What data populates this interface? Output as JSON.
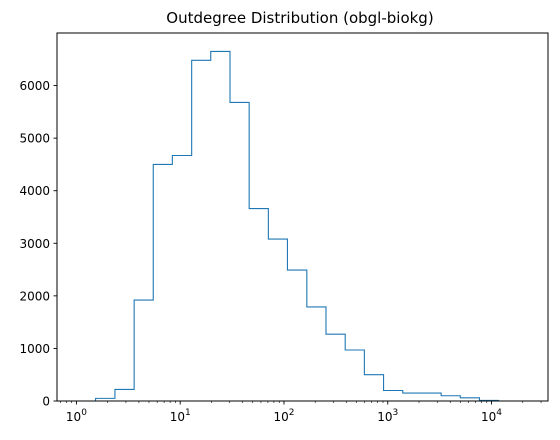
{
  "chart_data": {
    "type": "histogram",
    "title": "Outdegree Distribution (obgl-biokg)",
    "xlabel": "",
    "ylabel": "",
    "x_scale": "log",
    "xlim": [
      0.65,
      35000
    ],
    "ylim": [
      0,
      7000
    ],
    "grid": false,
    "histtype": "step",
    "color": "#1f77b4",
    "bin_edges": [
      1,
      1.53,
      2.35,
      3.6,
      5.5,
      8.4,
      12.9,
      19.7,
      30.2,
      46.2,
      70.7,
      108,
      166,
      254,
      389,
      595,
      911,
      1395,
      2135,
      3270,
      5000,
      7650,
      11700
    ],
    "values": [
      0,
      50,
      220,
      1920,
      4500,
      4670,
      6480,
      6650,
      5680,
      3660,
      3080,
      2490,
      1790,
      1270,
      970,
      500,
      200,
      150,
      150,
      100,
      60,
      10
    ],
    "x_ticks": [
      {
        "value": 1,
        "base": "10",
        "exp": "0"
      },
      {
        "value": 10,
        "base": "10",
        "exp": "1"
      },
      {
        "value": 100,
        "base": "10",
        "exp": "2"
      },
      {
        "value": 1000,
        "base": "10",
        "exp": "3"
      },
      {
        "value": 10000,
        "base": "10",
        "exp": "4"
      }
    ],
    "y_ticks": [
      {
        "value": 0,
        "label": "0"
      },
      {
        "value": 1000,
        "label": "1000"
      },
      {
        "value": 2000,
        "label": "2000"
      },
      {
        "value": 3000,
        "label": "3000"
      },
      {
        "value": 4000,
        "label": "4000"
      },
      {
        "value": 5000,
        "label": "5000"
      },
      {
        "value": 6000,
        "label": "6000"
      }
    ]
  }
}
